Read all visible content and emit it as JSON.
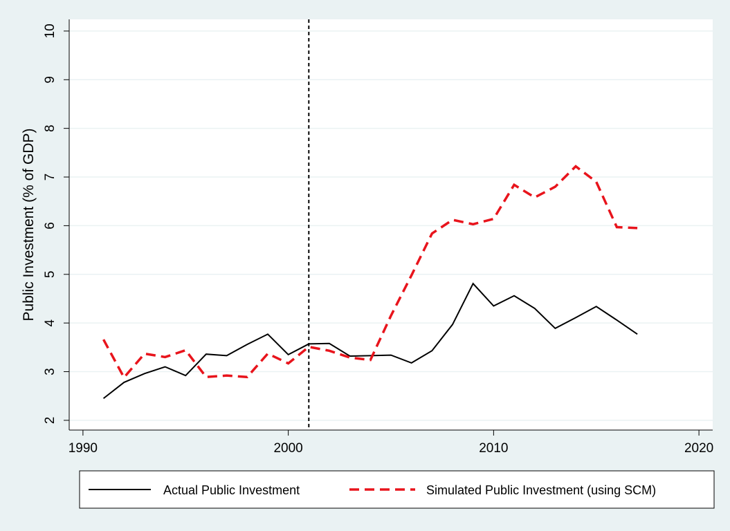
{
  "chart_data": {
    "type": "line",
    "y_label": "Public Investment (% of GDP)",
    "x": [
      1991,
      1992,
      1993,
      1994,
      1995,
      1996,
      1997,
      1998,
      1999,
      2000,
      2001,
      2002,
      2003,
      2004,
      2005,
      2006,
      2007,
      2008,
      2009,
      2010,
      2011,
      2012,
      2013,
      2014,
      2015,
      2016,
      2017
    ],
    "series": [
      {
        "name": "Actual Public Investment",
        "color": "#000000",
        "dash": false,
        "values": [
          2.45,
          2.78,
          2.96,
          3.1,
          2.92,
          3.36,
          3.33,
          3.56,
          3.77,
          3.35,
          3.57,
          3.58,
          3.32,
          3.33,
          3.34,
          3.18,
          3.43,
          3.97,
          4.81,
          4.35,
          4.56,
          4.3,
          3.89,
          4.11,
          4.34,
          4.06,
          3.77
        ]
      },
      {
        "name": "Simulated Public Investment (using SCM)",
        "color": "#e8141c",
        "dash": true,
        "values": [
          3.66,
          2.88,
          3.37,
          3.3,
          3.44,
          2.89,
          2.92,
          2.89,
          3.37,
          3.17,
          3.51,
          3.43,
          3.29,
          3.24,
          4.15,
          4.98,
          5.84,
          6.12,
          6.03,
          6.14,
          6.84,
          6.58,
          6.8,
          7.22,
          6.9,
          5.97,
          5.95
        ]
      }
    ],
    "xline": 2001,
    "xlim": [
      1989.33,
      2020.67
    ],
    "xticks": [
      1990,
      2000,
      2010,
      2020
    ],
    "ylim": [
      1.8,
      10.24
    ],
    "yticks": [
      2,
      3,
      4,
      5,
      6,
      7,
      8,
      9,
      10
    ],
    "grid": true,
    "legend": "bottom"
  }
}
